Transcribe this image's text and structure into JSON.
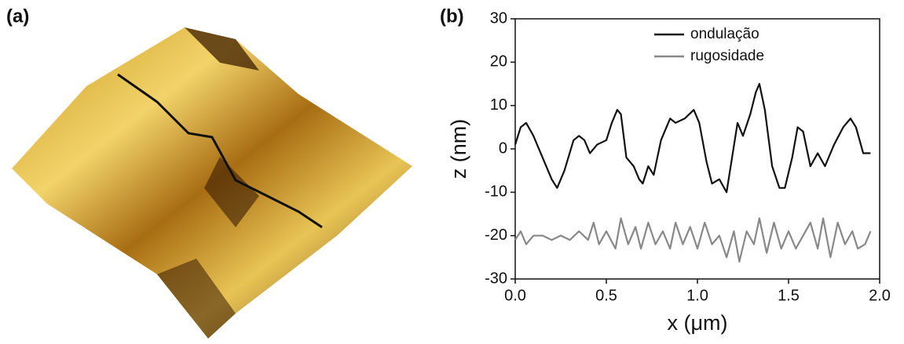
{
  "panel_labels": [
    "(a)",
    "(b)"
  ],
  "chart_data": {
    "type": "line",
    "xlabel": "x (μm)",
    "ylabel": "z (nm)",
    "xlim": [
      0,
      2.0
    ],
    "ylim": [
      -30,
      30
    ],
    "xticks": [
      {
        "value": 0,
        "label": "0.0"
      },
      0.5,
      {
        "value": 1,
        "label": "1.0"
      },
      1.5,
      {
        "value": 2,
        "label": "2.0"
      }
    ],
    "yticks": [
      -30,
      -20,
      -10,
      0,
      10,
      20,
      30
    ],
    "legend": "top",
    "series": [
      {
        "name": "ondulação",
        "color": "#111111",
        "x": [
          0,
          0.03,
          0.06,
          0.1,
          0.15,
          0.2,
          0.23,
          0.27,
          0.32,
          0.35,
          0.38,
          0.41,
          0.45,
          0.5,
          0.53,
          0.56,
          0.58,
          0.61,
          0.65,
          0.68,
          0.7,
          0.73,
          0.76,
          0.8,
          0.85,
          0.88,
          0.93,
          0.98,
          1.01,
          1.05,
          1.08,
          1.12,
          1.16,
          1.19,
          1.22,
          1.25,
          1.29,
          1.32,
          1.34,
          1.37,
          1.41,
          1.45,
          1.48,
          1.52,
          1.55,
          1.58,
          1.62,
          1.66,
          1.7,
          1.75,
          1.8,
          1.84,
          1.87,
          1.91,
          1.95
        ],
        "values": [
          1,
          5,
          6,
          3,
          -2,
          -7,
          -9,
          -5,
          2,
          3,
          2,
          -1,
          1,
          2,
          6,
          9,
          8,
          -2,
          -4,
          -7,
          -8,
          -4,
          -6,
          2,
          7,
          6,
          7,
          9,
          6,
          -3,
          -8,
          -7,
          -10,
          -2,
          6,
          3,
          8,
          13,
          15,
          9,
          -4,
          -9,
          -9,
          -2,
          5,
          4,
          -4,
          -1,
          -4,
          1,
          5,
          7,
          5,
          -1,
          -1
        ]
      },
      {
        "name": "rugosidade",
        "color": "#888888",
        "x": [
          0,
          0.03,
          0.06,
          0.1,
          0.15,
          0.2,
          0.25,
          0.3,
          0.35,
          0.4,
          0.43,
          0.46,
          0.5,
          0.55,
          0.58,
          0.62,
          0.66,
          0.69,
          0.73,
          0.77,
          0.81,
          0.85,
          0.88,
          0.92,
          0.96,
          1.0,
          1.04,
          1.08,
          1.12,
          1.16,
          1.2,
          1.23,
          1.27,
          1.31,
          1.34,
          1.38,
          1.42,
          1.46,
          1.5,
          1.54,
          1.58,
          1.62,
          1.66,
          1.69,
          1.73,
          1.77,
          1.81,
          1.85,
          1.88,
          1.92,
          1.95
        ],
        "values": [
          -21,
          -19,
          -22,
          -20,
          -20,
          -21,
          -20,
          -21,
          -19,
          -21,
          -17,
          -22,
          -19,
          -23,
          -16,
          -22,
          -18,
          -23,
          -17,
          -22,
          -19,
          -23,
          -17,
          -22,
          -18,
          -23,
          -17,
          -22,
          -20,
          -25,
          -19,
          -26,
          -19,
          -22,
          -16,
          -24,
          -17,
          -23,
          -19,
          -23,
          -20,
          -17,
          -23,
          -16,
          -25,
          -17,
          -22,
          -19,
          -23,
          -22,
          -19
        ]
      }
    ]
  }
}
